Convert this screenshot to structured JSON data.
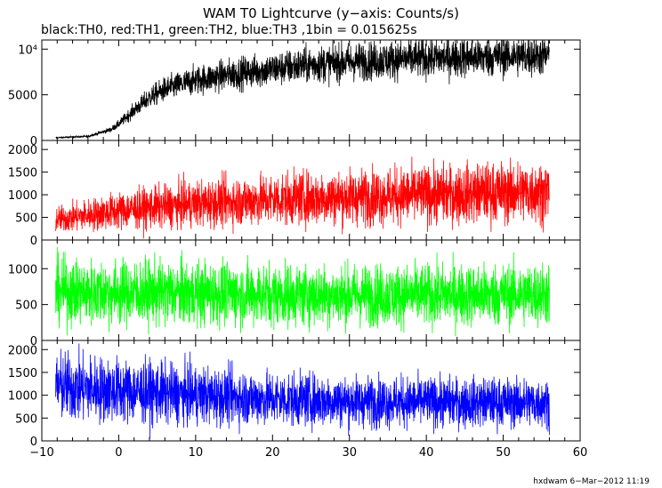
{
  "title": "WAM T0 Lightcurve (y−axis: Counts/s)",
  "subtitle": "black:TH0, red:TH1, green:TH2, blue:TH3 ,1bin = 0.015625s",
  "footer": "hxdwam  6−Mar−2012 11:19",
  "chart_data": [
    {
      "type": "line",
      "name": "TH0",
      "color": "#000000",
      "xlim": [
        -10,
        60
      ],
      "ylim": [
        0,
        11000
      ],
      "y_ticks": [
        0,
        5000,
        10000
      ],
      "y_tick_labels": [
        "0",
        "5000",
        "10⁴"
      ],
      "x_range": [
        -8.2,
        56
      ],
      "trend_x": [
        -8,
        -4,
        -1,
        0,
        2,
        4,
        6,
        10,
        15,
        20,
        25,
        30,
        35,
        40,
        45,
        50,
        56
      ],
      "trend_y": [
        300,
        450,
        1200,
        1800,
        3300,
        4700,
        5600,
        6600,
        7300,
        7800,
        8300,
        8600,
        8800,
        9000,
        9100,
        9200,
        9300
      ],
      "scatter_fraction": 0.12
    },
    {
      "type": "line",
      "name": "TH1",
      "color": "#ff0000",
      "xlim": [
        -10,
        60
      ],
      "ylim": [
        0,
        2200
      ],
      "y_ticks": [
        0,
        500,
        1000,
        1500,
        2000
      ],
      "y_tick_labels": [
        "0",
        "500",
        "1000",
        "1500",
        "2000"
      ],
      "x_range": [
        -8.2,
        56
      ],
      "trend_x": [
        -8,
        0,
        10,
        20,
        30,
        40,
        50,
        56
      ],
      "trend_y": [
        450,
        650,
        800,
        900,
        950,
        1000,
        1050,
        1080
      ],
      "scatter_fraction": 0.32
    },
    {
      "type": "line",
      "name": "TH2",
      "color": "#00ff00",
      "xlim": [
        -10,
        60
      ],
      "ylim": [
        0,
        1400
      ],
      "y_ticks": [
        0,
        500,
        1000
      ],
      "y_tick_labels": [
        "0",
        "500",
        "1000"
      ],
      "x_range": [
        -8.2,
        56
      ],
      "trend_x": [
        -8,
        0,
        10,
        20,
        30,
        40,
        50,
        56
      ],
      "trend_y": [
        680,
        670,
        660,
        640,
        630,
        630,
        640,
        650
      ],
      "scatter_fraction": 0.34
    },
    {
      "type": "line",
      "name": "TH3",
      "color": "#0000ff",
      "xlim": [
        -10,
        60
      ],
      "ylim": [
        0,
        2200
      ],
      "y_ticks": [
        0,
        500,
        1000,
        1500,
        2000
      ],
      "y_tick_labels": [
        "0",
        "500",
        "1000",
        "1500",
        "2000"
      ],
      "x_range": [
        -8.2,
        56
      ],
      "trend_x": [
        -8,
        0,
        10,
        20,
        30,
        40,
        50,
        56
      ],
      "trend_y": [
        1200,
        1100,
        1000,
        920,
        870,
        850,
        840,
        840
      ],
      "scatter_fraction": 0.32
    }
  ],
  "x_axis": {
    "ticks": [
      -10,
      0,
      10,
      20,
      30,
      40,
      50,
      60
    ],
    "tick_labels": [
      "−10",
      "0",
      "10",
      "20",
      "30",
      "40",
      "50",
      "60"
    ]
  }
}
